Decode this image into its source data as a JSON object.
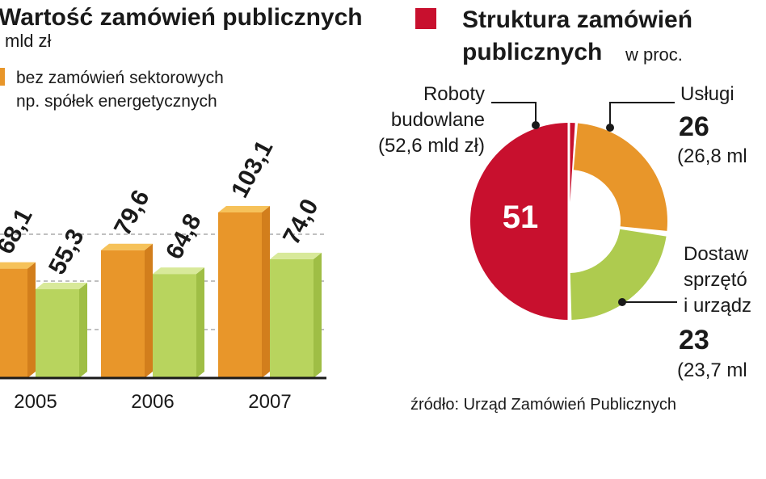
{
  "colors": {
    "orange_front": "#E8962A",
    "orange_side": "#D27E1C",
    "orange_top": "#F6C25A",
    "green_front": "#B8D45E",
    "green_side": "#9FBE45",
    "green_top": "#D8E99A",
    "crimson": "#C8102E",
    "donut_orange": "#E8962A",
    "donut_green": "#AECB4F",
    "grid": "#9a9a9a"
  },
  "left": {
    "title": "Wartość zamówień publicznych",
    "unit": "mld zł",
    "legend_note_line1": "bez zamówień sektorowych",
    "legend_note_line2": "np. spółek energetycznych"
  },
  "right": {
    "title_line1": "Struktura zamówień",
    "title_line2": "publicznych",
    "unit": "w proc.",
    "segments": [
      {
        "name_lines": [
          "Roboty",
          "budowlane"
        ],
        "value": "(52,6 mld zł)",
        "percent": 51
      },
      {
        "name_lines": [
          "Usługi"
        ],
        "value": "(26,8 ml",
        "percent": 26
      },
      {
        "name_lines": [
          "Dostaw",
          "sprzętó",
          "i urządz"
        ],
        "value": "(23,7 ml",
        "percent": 23
      }
    ]
  },
  "source": "źródło: Urząd Zamówień Publicznych",
  "chart_data": [
    {
      "type": "bar",
      "title": "Wartość zamówień publicznych",
      "ylabel": "mld zł",
      "categories": [
        "2005",
        "2006",
        "2007"
      ],
      "series": [
        {
          "values": [
            68.1,
            79.6,
            103.1
          ],
          "labels": [
            "68,1",
            "79,6",
            "103,1"
          ]
        },
        {
          "name": "bez zamówień sektorowych np. spółek energetycznych",
          "values": [
            55.3,
            64.8,
            74.0
          ],
          "labels": [
            "55,3",
            "64,8",
            "74,0"
          ]
        }
      ],
      "ylim": [
        0,
        110
      ],
      "grid": true
    },
    {
      "type": "pie",
      "title": "Struktura zamówień publicznych",
      "unit": "w proc.",
      "slices": [
        {
          "label": "Roboty budowlane",
          "value": 51
        },
        {
          "label": "Usługi",
          "value": 26
        },
        {
          "label": "Dostaw sprzętó i urządz",
          "value": 23
        }
      ]
    }
  ]
}
